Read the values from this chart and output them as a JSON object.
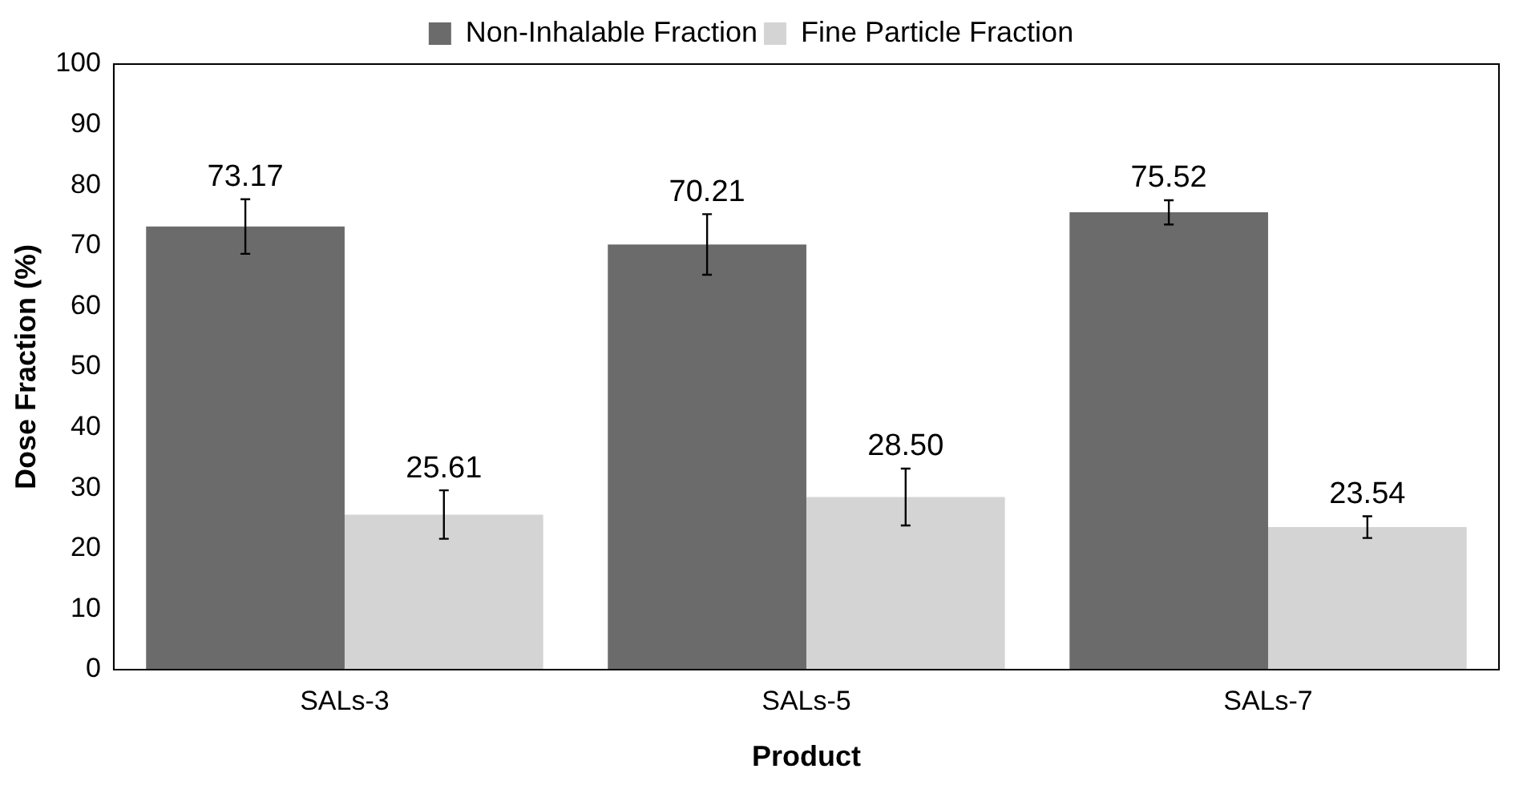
{
  "chart_data": {
    "type": "bar",
    "xlabel": "Product",
    "ylabel": "Dose Fraction (%)",
    "categories": [
      "SALs-3",
      "SALs-5",
      "SALs-7"
    ],
    "series": [
      {
        "name": "Non-Inhalable Fraction",
        "color": "#6b6b6b",
        "values": [
          73.17,
          70.21,
          75.52
        ],
        "errors": [
          4.5,
          5,
          2
        ]
      },
      {
        "name": "Fine Particle Fraction",
        "color": "#d4d4d4",
        "values": [
          25.61,
          28.5,
          23.54
        ],
        "value_labels": [
          "25.61",
          "28.50",
          "23.54"
        ],
        "errors": [
          4,
          4.7,
          1.8
        ]
      }
    ],
    "ylim": [
      0,
      100
    ],
    "yticks": [
      0,
      10,
      20,
      30,
      40,
      50,
      60,
      70,
      80,
      90,
      100
    ],
    "grid": false,
    "legend": "top",
    "data_labels": true
  }
}
